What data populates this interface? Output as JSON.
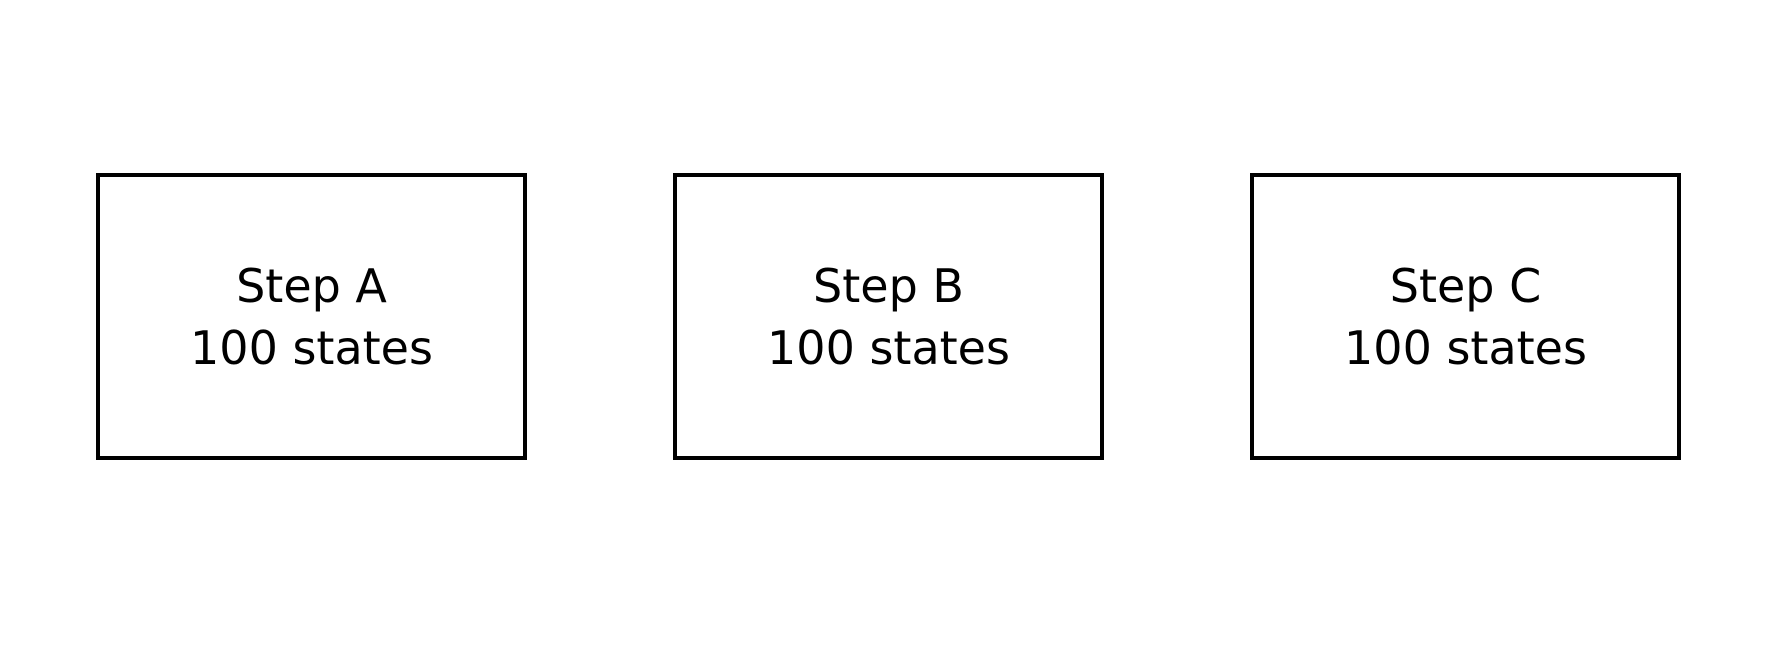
{
  "steps": [
    {
      "name": "Step A",
      "states": "100 states"
    },
    {
      "name": "Step B",
      "states": "100 states"
    },
    {
      "name": "Step C",
      "states": "100 states"
    }
  ]
}
